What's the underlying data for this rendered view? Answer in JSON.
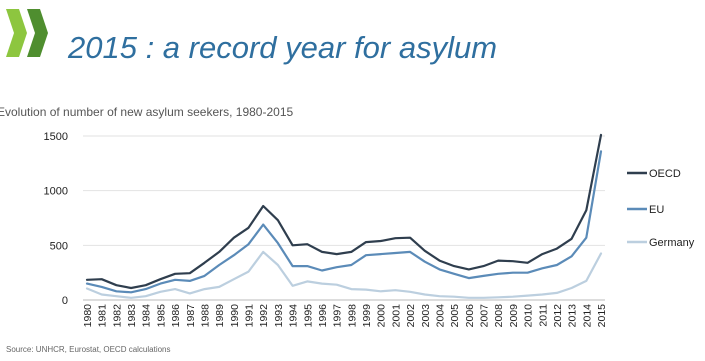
{
  "slide": {
    "title": "2015 : a record year for asylum",
    "subtitle": "Evolution of number of new asylum seekers, 1980-2015",
    "source": "Source: UNHCR, Eurostat, OECD calculations"
  },
  "chart_data": {
    "type": "line",
    "title": "Evolution of number of new asylum seekers, 1980-2015",
    "xlabel": "",
    "ylabel": "",
    "ylim": [
      0,
      1500
    ],
    "yticks": [
      0,
      500,
      1000,
      1500
    ],
    "grid": true,
    "legend_position": "right",
    "x": [
      "1980",
      "1981",
      "1982",
      "1983",
      "1984",
      "1985",
      "1986",
      "1987",
      "1988",
      "1989",
      "1990",
      "1991",
      "1992",
      "1993",
      "1994",
      "1995",
      "1996",
      "1997",
      "1998",
      "1999",
      "2000",
      "2001",
      "2002",
      "2003",
      "2004",
      "2005",
      "2006",
      "2007",
      "2008",
      "2009",
      "2010",
      "2011",
      "2012",
      "2013",
      "2014",
      "2015"
    ],
    "series": [
      {
        "name": "OECD",
        "color": "#2f3e4e",
        "values": [
          185,
          190,
          135,
          110,
          135,
          190,
          240,
          245,
          340,
          440,
          570,
          660,
          860,
          730,
          500,
          510,
          440,
          420,
          440,
          530,
          540,
          565,
          570,
          450,
          360,
          310,
          280,
          310,
          360,
          355,
          340,
          420,
          470,
          560,
          820,
          1510
        ]
      },
      {
        "name": "EU",
        "color": "#5b8bb8",
        "values": [
          150,
          120,
          80,
          70,
          100,
          150,
          185,
          175,
          220,
          320,
          410,
          510,
          690,
          520,
          310,
          310,
          270,
          300,
          320,
          410,
          420,
          430,
          440,
          350,
          280,
          240,
          200,
          220,
          240,
          250,
          250,
          290,
          320,
          400,
          570,
          1360
        ]
      },
      {
        "name": "Germany",
        "color": "#bccfdf",
        "values": [
          105,
          50,
          35,
          20,
          35,
          75,
          100,
          60,
          100,
          120,
          190,
          260,
          440,
          320,
          130,
          170,
          150,
          140,
          100,
          95,
          80,
          90,
          75,
          50,
          35,
          30,
          20,
          20,
          25,
          30,
          40,
          50,
          65,
          110,
          175,
          425
        ]
      }
    ]
  }
}
